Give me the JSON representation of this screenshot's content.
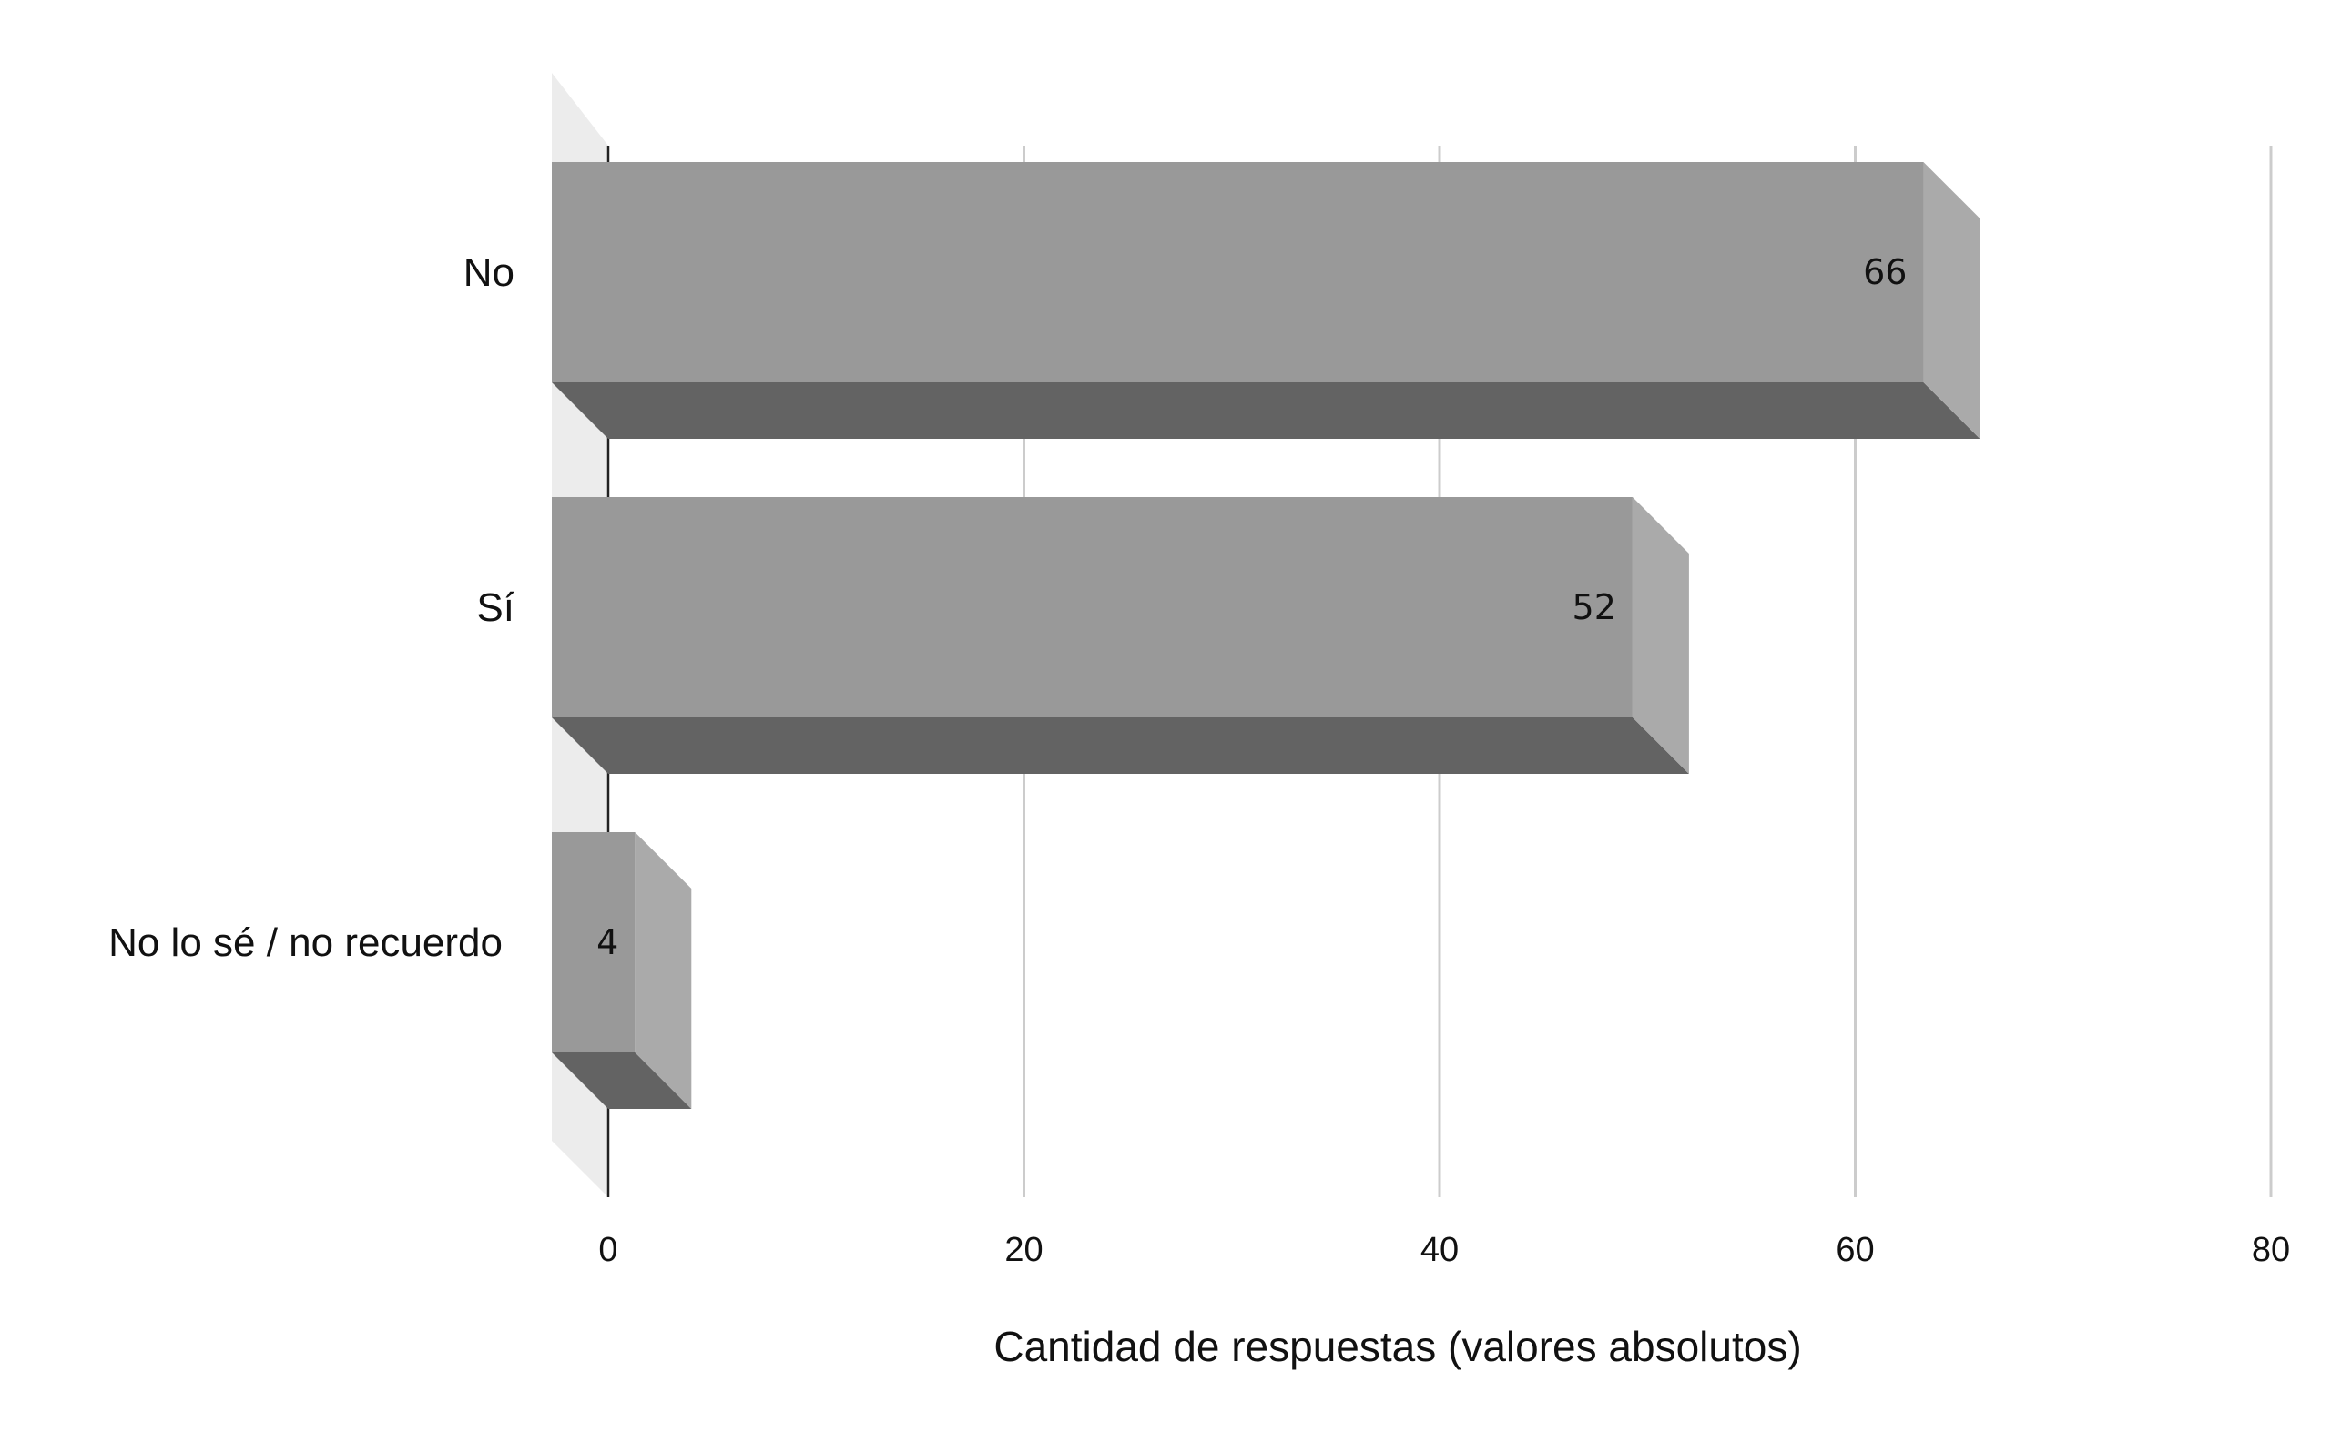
{
  "chart_data": {
    "type": "bar",
    "orientation": "horizontal",
    "style": "3d",
    "categories": [
      "No",
      "Sí",
      "No lo sé / no recuerdo"
    ],
    "values": [
      66,
      52,
      4
    ],
    "data_labels": [
      "66",
      "52",
      "4"
    ],
    "title": "",
    "xlabel": "Cantidad de respuestas (valores absolutos)",
    "ylabel": "",
    "xlim": [
      0,
      80
    ],
    "x_ticks": [
      0,
      20,
      40,
      60,
      80
    ],
    "x_tick_labels": [
      "0",
      "20",
      "40",
      "60",
      "80"
    ],
    "grid": true,
    "legend": "none",
    "colors": {
      "bar_front": "#999999",
      "bar_side": "#aaaaaa",
      "bar_bottom": "#636363",
      "wall": "#ececec",
      "gridline": "#cccccc",
      "axis_line": "#222222"
    }
  }
}
